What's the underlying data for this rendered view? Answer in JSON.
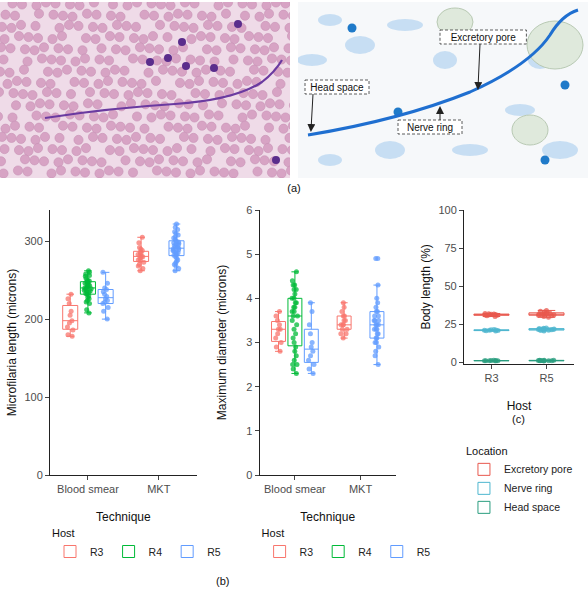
{
  "panel_labels": {
    "a": "(a)",
    "b": "(b)",
    "c": "(c)"
  },
  "panel_a": {
    "labels": [
      "Head space",
      "Excretory pore",
      "Nerve ring"
    ]
  },
  "chart_data": [
    {
      "type": "box",
      "x_label": "Technique",
      "y_label": "Microfilaria length (microns)",
      "categories": [
        "Blood smear",
        "MKT"
      ],
      "ylim": [
        0,
        340
      ],
      "yticks": [
        0,
        100,
        200,
        300
      ],
      "grid": false,
      "legend": "bottom",
      "legend_title": "Host",
      "marker": "circle",
      "series": [
        {
          "name": "R3",
          "color": "#F8766D",
          "values": [
            [
              232,
              226,
              220,
              210,
              205,
              198,
              195,
              190,
              186,
              180,
              178
            ],
            [
              305,
              298,
              292,
              290,
              288,
              286,
              285,
              283,
              282,
              281,
              280,
              279,
              278,
              276,
              275,
              273,
              270,
              268,
              265,
              262
            ]
          ]
        },
        {
          "name": "R4",
          "color": "#00BA38",
          "values": [
            [
              262,
              260,
              258,
              256,
              255,
              252,
              250,
              249,
              248,
              247,
              246,
              245,
              244,
              243,
              242,
              241,
              240,
              240,
              239,
              238,
              237,
              236,
              235,
              234,
              233,
              232,
              230,
              228,
              226,
              224,
              222,
              220,
              212,
              208
            ],
            []
          ]
        },
        {
          "name": "R5",
          "color": "#619CFF",
          "values": [
            [
              260,
              246,
              240,
              238,
              235,
              232,
              229,
              226,
              224,
              222,
              220,
              215,
              210,
              200
            ],
            [
              322,
              318,
              315,
              312,
              310,
              308,
              306,
              304,
              302,
              300,
              299,
              298,
              297,
              296,
              295,
              294,
              293,
              292,
              291,
              290,
              289,
              288,
              287,
              286,
              285,
              284,
              283,
              282,
              280,
              278,
              276,
              274,
              272,
              270,
              268,
              265,
              262
            ]
          ]
        }
      ]
    },
    {
      "type": "box",
      "x_label": "Technique",
      "y_label": "Maximum diameter (microns)",
      "categories": [
        "Blood smear",
        "MKT"
      ],
      "ylim": [
        0,
        6
      ],
      "yticks": [
        0,
        1,
        2,
        3,
        4,
        5,
        6
      ],
      "grid": false,
      "legend": "bottom",
      "legend_title": "Host",
      "marker": "circle",
      "series": [
        {
          "name": "R3",
          "color": "#F8766D",
          "values": [
            [
              3.7,
              3.6,
              3.5,
              3.4,
              3.3,
              3.3,
              3.2,
              3.1,
              3.0,
              2.9,
              2.8
            ],
            [
              3.9,
              3.8,
              3.7,
              3.6,
              3.6,
              3.5,
              3.5,
              3.4,
              3.4,
              3.4,
              3.3,
              3.3,
              3.2,
              3.2,
              3.1
            ]
          ]
        },
        {
          "name": "R4",
          "color": "#00BA38",
          "values": [
            [
              4.6,
              4.4,
              4.3,
              4.3,
              4.2,
              4.2,
              4.1,
              4.0,
              4.0,
              3.9,
              3.9,
              3.8,
              3.8,
              3.7,
              3.7,
              3.6,
              3.6,
              3.5,
              3.4,
              3.3,
              3.2,
              3.1,
              3.0,
              2.9,
              2.8,
              2.7,
              2.6,
              2.5,
              2.5,
              2.4,
              2.3
            ],
            []
          ]
        },
        {
          "name": "R5",
          "color": "#619CFF",
          "values": [
            [
              3.9,
              3.7,
              3.4,
              3.2,
              3.0,
              2.9,
              2.8,
              2.7,
              2.6,
              2.5,
              2.4,
              2.3
            ],
            [
              4.9,
              4.9,
              4.3,
              4.0,
              3.9,
              3.8,
              3.7,
              3.7,
              3.6,
              3.6,
              3.5,
              3.5,
              3.5,
              3.4,
              3.4,
              3.4,
              3.3,
              3.3,
              3.3,
              3.2,
              3.2,
              3.1,
              3.1,
              3.0,
              3.0,
              2.9,
              2.8,
              2.7,
              2.5
            ]
          ]
        }
      ]
    },
    {
      "type": "box",
      "x_label": "Host",
      "y_label": "Body length (%)",
      "categories": [
        "R3",
        "R5"
      ],
      "ylim": [
        -1,
        100
      ],
      "yticks": [
        0,
        25,
        50,
        75,
        100
      ],
      "grid": false,
      "legend": "bottom",
      "legend_title": "Location",
      "marker": "circle",
      "series": [
        {
          "name": "Excretory pore",
          "color": "#E8584E",
          "values": [
            [
              30.0,
              30.5,
              30.8,
              31.0,
              31.2,
              31.3,
              31.5,
              31.6,
              31.8,
              32.0
            ],
            [
              29.5,
              30.0,
              30.5,
              30.8,
              31.0,
              31.2,
              31.4,
              31.5,
              31.8,
              32.0,
              32.2,
              32.5,
              33.0,
              33.5,
              34.0
            ]
          ]
        },
        {
          "name": "Nerve ring",
          "color": "#4DB6CF",
          "values": [
            [
              20.5,
              20.7,
              20.8,
              21.0,
              21.0,
              21.2,
              21.3,
              21.4
            ],
            [
              20.5,
              20.8,
              21.0,
              21.2,
              21.3,
              21.5,
              21.7,
              21.8,
              22.0,
              22.1,
              22.3,
              22.5
            ]
          ]
        },
        {
          "name": "Head space",
          "color": "#2A9D7F",
          "values": [
            [
              0.8,
              0.9,
              0.9,
              1.0,
              1.0,
              1.1,
              1.1,
              1.2
            ],
            [
              0.8,
              0.9,
              0.9,
              1.0,
              1.0,
              1.1,
              1.1,
              1.2,
              1.2,
              1.3
            ]
          ]
        }
      ]
    }
  ]
}
